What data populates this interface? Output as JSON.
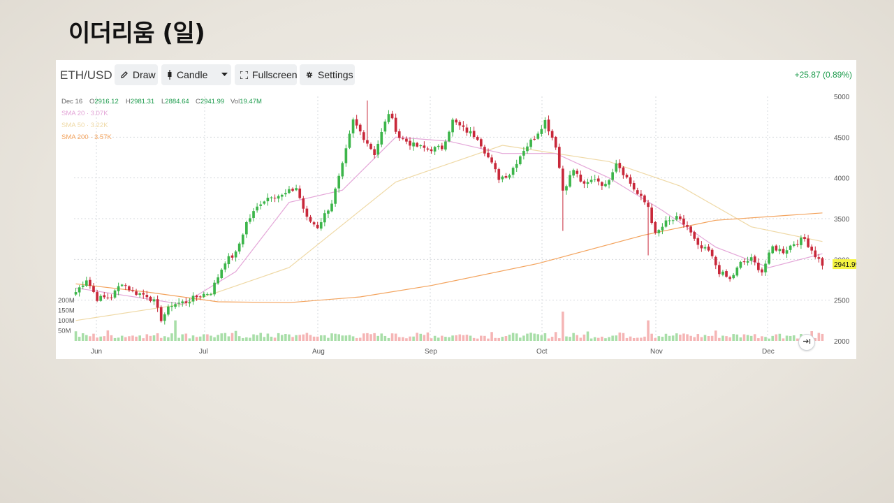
{
  "slide": {
    "title": "이더리움 (일)"
  },
  "toolbar": {
    "symbol": "ETH/USD",
    "draw_label": "Draw",
    "candle_label": "Candle",
    "fullscreen_label": "Fullscreen",
    "settings_label": "Settings",
    "change_text": "+25.87 (0.89%)"
  },
  "ohlc": {
    "date": "Dec 16",
    "o_label": "O",
    "o": "2916.12",
    "h_label": "H",
    "h": "2981.31",
    "l_label": "L",
    "l": "2884.64",
    "c_label": "C",
    "c": "2941.99",
    "vol_label": "Vol",
    "vol": "19.47M"
  },
  "indicators": [
    {
      "label": "SMA 20 · 3.07K",
      "color": "#e4a6d8"
    },
    {
      "label": "SMA 50 · 3.22K",
      "color": "#efd9a6"
    },
    {
      "label": "SMA 200 · 3.57K",
      "color": "#f3a35d"
    }
  ],
  "colors": {
    "up": "#3cb54a",
    "down": "#c8283a",
    "vol_up": "#a8dea8",
    "vol_down": "#f5b5b5",
    "price_tag": "#f5f542"
  },
  "chart_data": {
    "type": "candlestick",
    "x_labels": [
      "Jun",
      "Jul",
      "Aug",
      "Sep",
      "Oct",
      "Nov",
      "Dec"
    ],
    "y_ticks": [
      2000,
      2500,
      3000,
      3500,
      4000,
      4500,
      5000
    ],
    "ylim": [
      2000,
      5000
    ],
    "volume_ticks": [
      "200M",
      "150M",
      "100M",
      "50M"
    ],
    "last_price": "2941.99",
    "grid": true,
    "close_anchors": [
      [
        0,
        2600
      ],
      [
        3,
        2760
      ],
      [
        6,
        2520
      ],
      [
        10,
        2540
      ],
      [
        13,
        2720
      ],
      [
        16,
        2600
      ],
      [
        20,
        2560
      ],
      [
        22,
        2480
      ],
      [
        24,
        2270
      ],
      [
        27,
        2450
      ],
      [
        31,
        2480
      ],
      [
        35,
        2560
      ],
      [
        38,
        2600
      ],
      [
        42,
        2980
      ],
      [
        45,
        3070
      ],
      [
        48,
        3450
      ],
      [
        52,
        3700
      ],
      [
        55,
        3790
      ],
      [
        58,
        3780
      ],
      [
        62,
        3880
      ],
      [
        65,
        3500
      ],
      [
        68,
        3400
      ],
      [
        72,
        3700
      ],
      [
        75,
        4150
      ],
      [
        78,
        4700
      ],
      [
        81,
        4500
      ],
      [
        84,
        4300
      ],
      [
        88,
        4800
      ],
      [
        91,
        4500
      ],
      [
        95,
        4400
      ],
      [
        99,
        4350
      ],
      [
        103,
        4370
      ],
      [
        106,
        4700
      ],
      [
        109,
        4600
      ],
      [
        113,
        4500
      ],
      [
        116,
        4250
      ],
      [
        119,
        4000
      ],
      [
        122,
        4050
      ],
      [
        126,
        4350
      ],
      [
        129,
        4500
      ],
      [
        132,
        4700
      ],
      [
        135,
        4400
      ],
      [
        137,
        3850
      ],
      [
        140,
        4100
      ],
      [
        143,
        3900
      ],
      [
        146,
        4000
      ],
      [
        149,
        3900
      ],
      [
        152,
        4200
      ],
      [
        155,
        4000
      ],
      [
        158,
        3800
      ],
      [
        161,
        3650
      ],
      [
        163,
        3300
      ],
      [
        166,
        3450
      ],
      [
        169,
        3500
      ],
      [
        172,
        3400
      ],
      [
        175,
        3150
      ],
      [
        178,
        3100
      ],
      [
        181,
        2850
      ],
      [
        184,
        2750
      ],
      [
        187,
        2950
      ],
      [
        190,
        3000
      ],
      [
        193,
        2850
      ],
      [
        196,
        3150
      ],
      [
        199,
        3100
      ],
      [
        202,
        3200
      ],
      [
        205,
        3250
      ],
      [
        208,
        3050
      ],
      [
        210,
        2942
      ]
    ],
    "sma_20": [
      [
        0,
        2650
      ],
      [
        30,
        2450
      ],
      [
        45,
        2850
      ],
      [
        60,
        3700
      ],
      [
        75,
        3850
      ],
      [
        90,
        4500
      ],
      [
        105,
        4450
      ],
      [
        120,
        4300
      ],
      [
        135,
        4300
      ],
      [
        150,
        4000
      ],
      [
        165,
        3600
      ],
      [
        180,
        3150
      ],
      [
        195,
        2900
      ],
      [
        210,
        3070
      ]
    ],
    "sma_50": [
      [
        0,
        2250
      ],
      [
        30,
        2450
      ],
      [
        60,
        2900
      ],
      [
        90,
        3950
      ],
      [
        120,
        4400
      ],
      [
        150,
        4200
      ],
      [
        170,
        3900
      ],
      [
        190,
        3400
      ],
      [
        210,
        3220
      ]
    ],
    "sma_200": [
      [
        0,
        2700
      ],
      [
        20,
        2600
      ],
      [
        40,
        2480
      ],
      [
        60,
        2470
      ],
      [
        80,
        2540
      ],
      [
        100,
        2680
      ],
      [
        130,
        2950
      ],
      [
        160,
        3300
      ],
      [
        180,
        3480
      ],
      [
        210,
        3570
      ]
    ]
  }
}
